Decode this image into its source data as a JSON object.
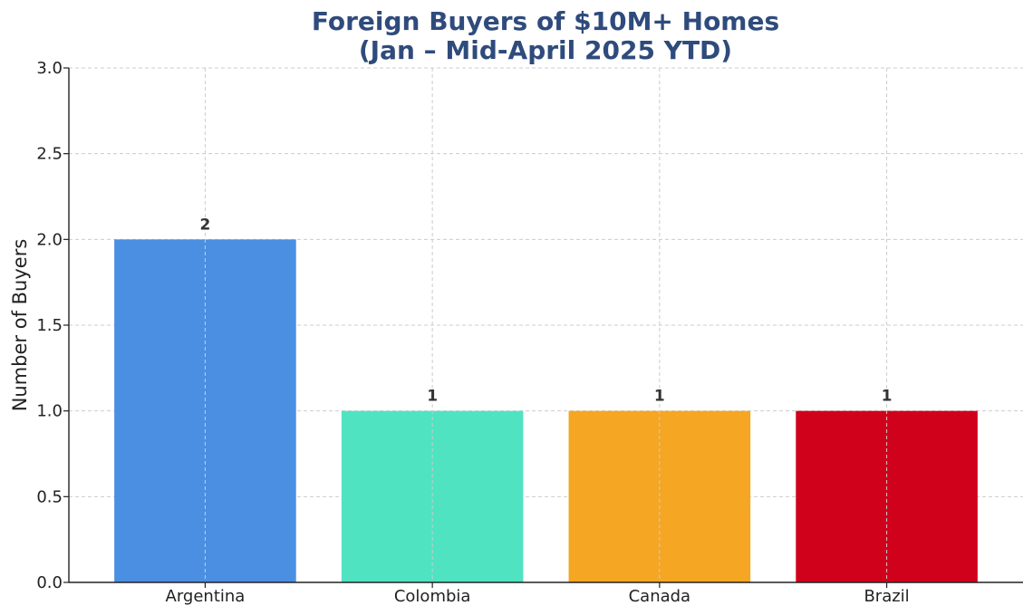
{
  "chart_data": {
    "type": "bar",
    "title_lines": [
      "Foreign Buyers of $10M+ Homes",
      "(Jan – Mid-April 2025 YTD)"
    ],
    "xlabel": "",
    "ylabel": "Number of Buyers",
    "categories": [
      "Argentina",
      "Colombia",
      "Canada",
      "Brazil"
    ],
    "values": [
      2,
      1,
      1,
      1
    ],
    "data_labels": [
      "2",
      "1",
      "1",
      "1"
    ],
    "colors": [
      "#4a8fe2",
      "#50e3c2",
      "#f5a623",
      "#d0021b"
    ],
    "ylim": [
      0,
      3
    ],
    "yticks": [
      "0.0",
      "0.5",
      "1.0",
      "1.5",
      "2.0",
      "2.5",
      "3.0"
    ],
    "grid": true,
    "legend": "none"
  }
}
